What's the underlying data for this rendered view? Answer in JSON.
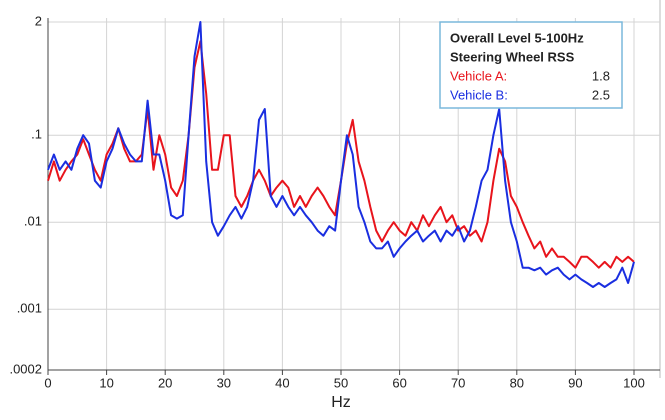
{
  "chart_data": {
    "type": "line",
    "xlabel": "Hz",
    "legend_title": [
      "Overall Level 5-100Hz",
      "Steering Wheel RSS"
    ],
    "x": [
      0,
      1,
      2,
      3,
      4,
      5,
      6,
      7,
      8,
      9,
      10,
      11,
      12,
      13,
      14,
      15,
      16,
      17,
      18,
      19,
      20,
      21,
      22,
      23,
      24,
      25,
      26,
      27,
      28,
      29,
      30,
      31,
      32,
      33,
      34,
      35,
      36,
      37,
      38,
      39,
      40,
      41,
      42,
      43,
      44,
      45,
      46,
      47,
      48,
      49,
      50,
      51,
      52,
      53,
      54,
      55,
      56,
      57,
      58,
      59,
      60,
      61,
      62,
      63,
      64,
      65,
      66,
      67,
      68,
      69,
      70,
      71,
      72,
      73,
      74,
      75,
      76,
      77,
      78,
      79,
      80,
      81,
      82,
      83,
      84,
      85,
      86,
      87,
      88,
      89,
      90,
      91,
      92,
      93,
      94,
      95,
      96,
      97,
      98,
      99,
      100
    ],
    "series": [
      {
        "name": "Vehicle A:",
        "rss": 1.8,
        "color": "#e8141c",
        "values": [
          0.03,
          0.05,
          0.03,
          0.04,
          0.05,
          0.06,
          0.09,
          0.06,
          0.04,
          0.03,
          0.06,
          0.08,
          0.12,
          0.07,
          0.05,
          0.05,
          0.06,
          0.2,
          0.04,
          0.1,
          0.06,
          0.025,
          0.02,
          0.03,
          0.1,
          0.6,
          1.2,
          0.3,
          0.04,
          0.04,
          0.1,
          0.1,
          0.02,
          0.015,
          0.02,
          0.03,
          0.04,
          0.03,
          0.02,
          0.025,
          0.03,
          0.025,
          0.015,
          0.02,
          0.015,
          0.02,
          0.025,
          0.02,
          0.015,
          0.012,
          0.03,
          0.08,
          0.15,
          0.05,
          0.03,
          0.015,
          0.008,
          0.006,
          0.008,
          0.01,
          0.008,
          0.007,
          0.01,
          0.008,
          0.012,
          0.009,
          0.012,
          0.015,
          0.01,
          0.012,
          0.008,
          0.009,
          0.007,
          0.008,
          0.006,
          0.01,
          0.03,
          0.07,
          0.05,
          0.02,
          0.015,
          0.01,
          0.007,
          0.005,
          0.006,
          0.004,
          0.005,
          0.004,
          0.004,
          0.0035,
          0.003,
          0.004,
          0.004,
          0.0035,
          0.003,
          0.0035,
          0.003,
          0.004,
          0.0035,
          0.004,
          0.0035
        ]
      },
      {
        "name": "Vehicle B:",
        "rss": 2.5,
        "color": "#1a2ee0",
        "values": [
          0.04,
          0.06,
          0.04,
          0.05,
          0.04,
          0.07,
          0.1,
          0.08,
          0.03,
          0.025,
          0.05,
          0.07,
          0.12,
          0.08,
          0.06,
          0.05,
          0.05,
          0.25,
          0.06,
          0.06,
          0.03,
          0.012,
          0.011,
          0.012,
          0.1,
          0.8,
          2.0,
          0.05,
          0.01,
          0.007,
          0.009,
          0.012,
          0.015,
          0.011,
          0.015,
          0.03,
          0.15,
          0.2,
          0.02,
          0.015,
          0.02,
          0.015,
          0.012,
          0.015,
          0.012,
          0.01,
          0.008,
          0.007,
          0.009,
          0.008,
          0.03,
          0.1,
          0.06,
          0.015,
          0.01,
          0.006,
          0.005,
          0.005,
          0.006,
          0.004,
          0.005,
          0.006,
          0.007,
          0.008,
          0.006,
          0.007,
          0.008,
          0.006,
          0.008,
          0.007,
          0.009,
          0.006,
          0.008,
          0.015,
          0.03,
          0.04,
          0.1,
          0.2,
          0.03,
          0.01,
          0.006,
          0.003,
          0.003,
          0.0028,
          0.003,
          0.0025,
          0.0028,
          0.003,
          0.0025,
          0.0022,
          0.0025,
          0.0022,
          0.002,
          0.0018,
          0.002,
          0.0018,
          0.002,
          0.0022,
          0.003,
          0.002,
          0.0035
        ]
      }
    ],
    "xlim": [
      0,
      100
    ],
    "xticks": [
      0,
      10,
      20,
      30,
      40,
      50,
      60,
      70,
      80,
      90,
      100
    ],
    "ylim": [
      0.0002,
      2
    ],
    "log_y": true,
    "yticks": [
      2,
      {
        "value": 0.1,
        "label": ".1"
      },
      {
        "value": 0.01,
        "label": ".01"
      },
      {
        "value": 0.001,
        "label": ".001"
      },
      {
        "value": 0.0002,
        "label": ".0002"
      }
    ],
    "grid": true
  }
}
